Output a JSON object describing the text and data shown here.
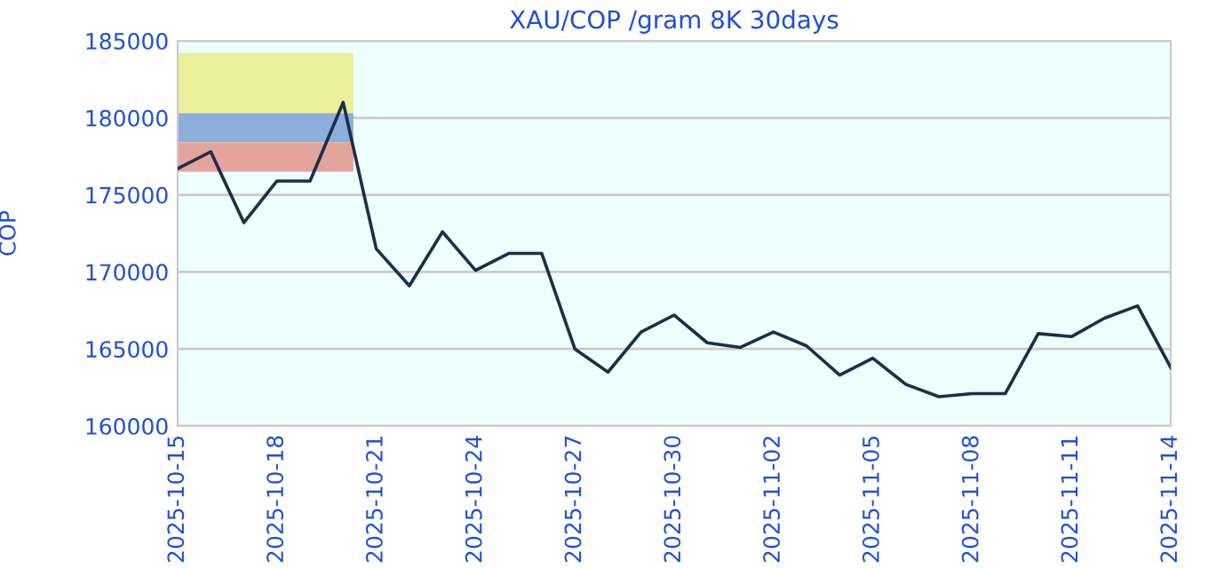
{
  "chart_data": {
    "type": "line",
    "title": "XAU/COP /gram 8K 30days",
    "ylabel": "COP",
    "x": [
      "2025-10-15",
      "2025-10-16",
      "2025-10-17",
      "2025-10-18",
      "2025-10-19",
      "2025-10-20",
      "2025-10-21",
      "2025-10-22",
      "2025-10-23",
      "2025-10-24",
      "2025-10-25",
      "2025-10-26",
      "2025-10-27",
      "2025-10-28",
      "2025-10-29",
      "2025-10-30",
      "2025-10-31",
      "2025-11-01",
      "2025-11-02",
      "2025-11-03",
      "2025-11-04",
      "2025-11-05",
      "2025-11-06",
      "2025-11-07",
      "2025-11-08",
      "2025-11-09",
      "2025-11-10",
      "2025-11-11",
      "2025-11-12",
      "2025-11-13",
      "2025-11-14"
    ],
    "series": [
      {
        "color": "#1c2e4a",
        "values": [
          176700,
          177800,
          173200,
          175900,
          175900,
          181000,
          171500,
          169100,
          172600,
          170100,
          171200,
          171200,
          165000,
          163500,
          166100,
          167200,
          165400,
          165100,
          166100,
          165200,
          163300,
          164400,
          162700,
          161900,
          162100,
          162100,
          166000,
          165800,
          167000,
          167800,
          163800
        ]
      }
    ],
    "xlim": [
      "2025-10-15",
      "2025-11-14"
    ],
    "xticks": [
      "2025-10-15",
      "2025-10-18",
      "2025-10-21",
      "2025-10-24",
      "2025-10-27",
      "2025-10-30",
      "2025-11-02",
      "2025-11-05",
      "2025-11-08",
      "2025-11-11",
      "2025-11-14"
    ],
    "ylim": [
      160000,
      185000
    ],
    "yticks": [
      160000,
      165000,
      170000,
      175000,
      180000,
      185000
    ],
    "grid": "y",
    "legend": false,
    "marker": "none",
    "line_style": "solid"
  }
}
